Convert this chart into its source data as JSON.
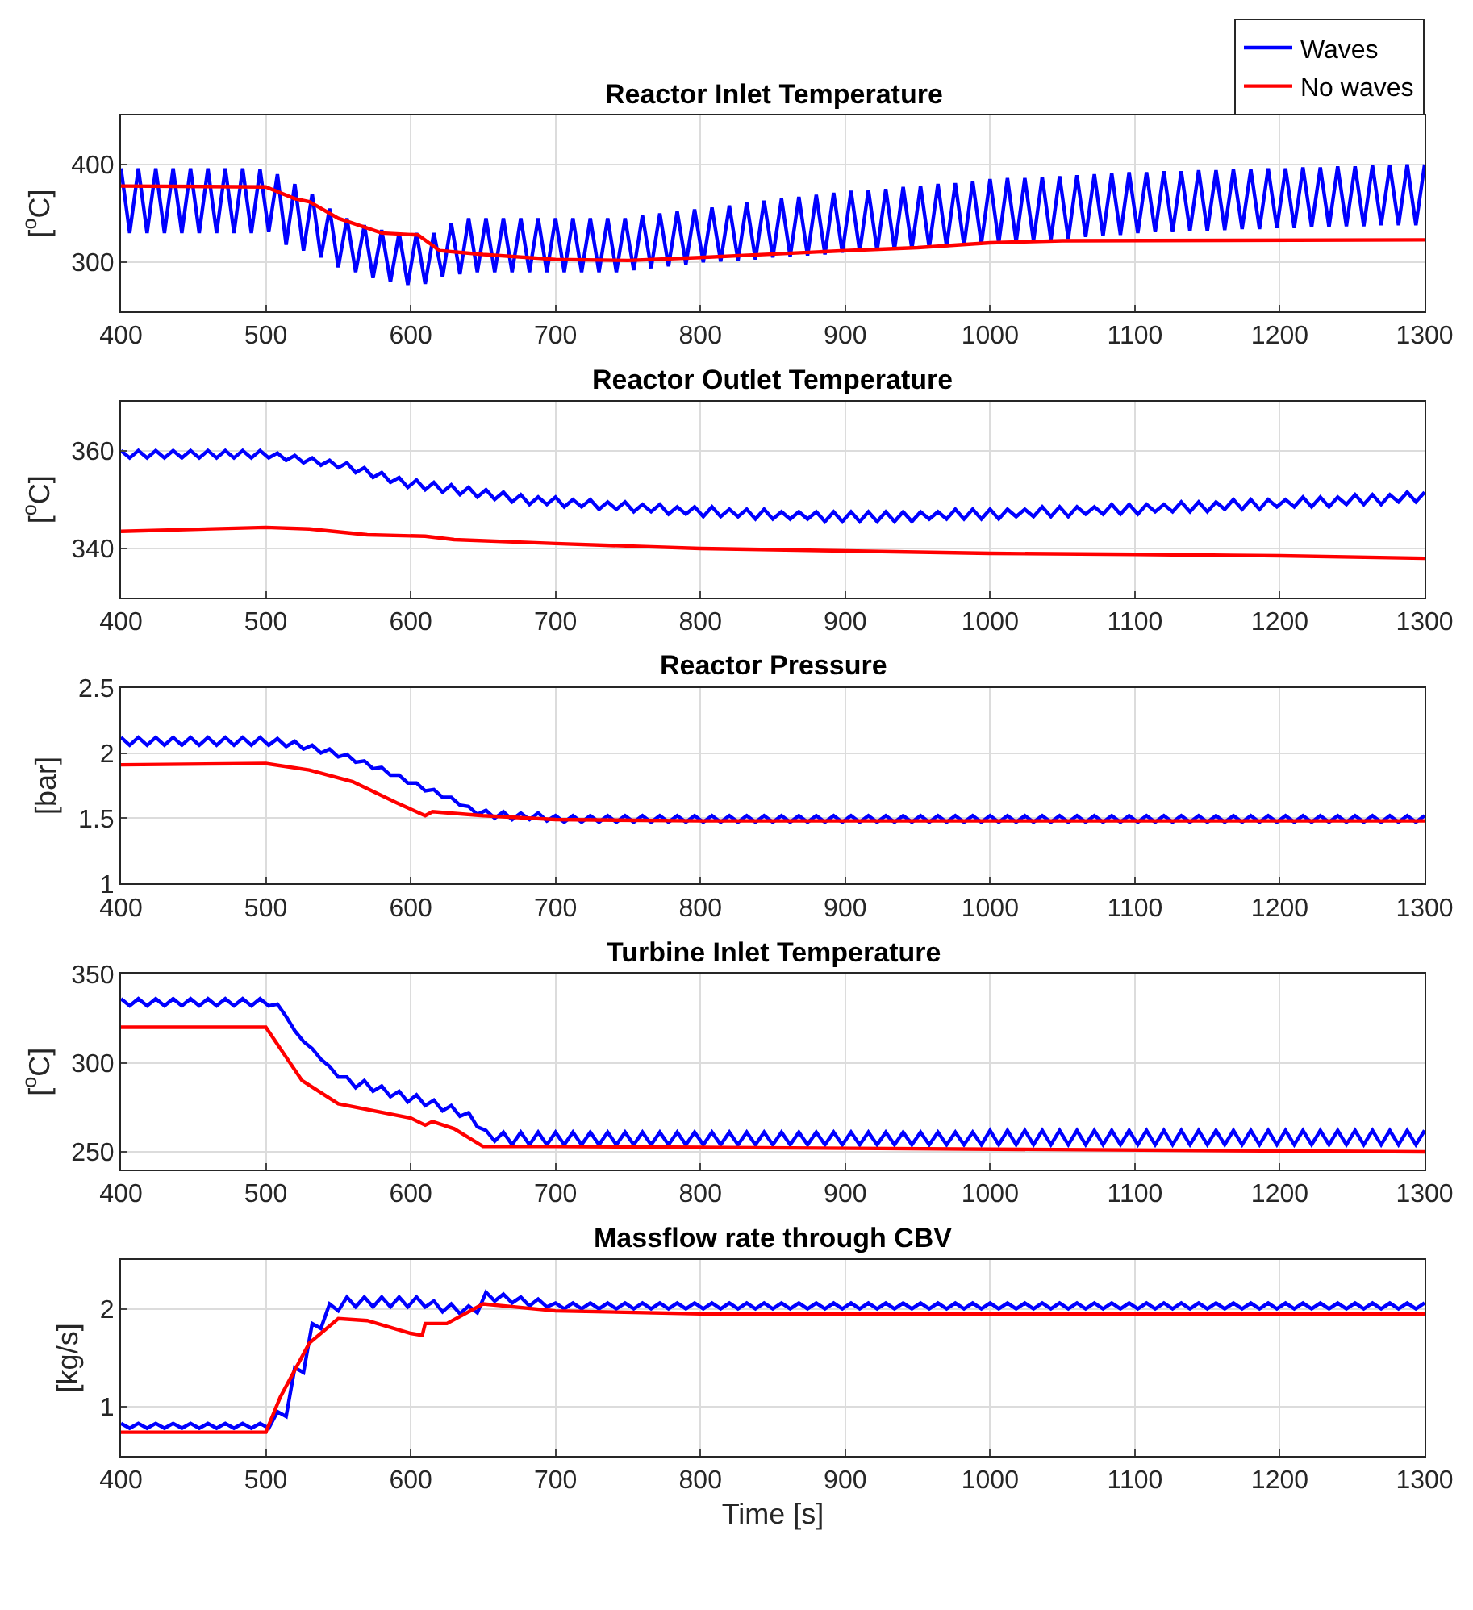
{
  "chart_data": [
    {
      "type": "line",
      "title": "Reactor Inlet Temperature",
      "ylabel": "[$^{o}$C]",
      "legend": "top right",
      "grid": true,
      "x": [
        400,
        406,
        412,
        418,
        424,
        430,
        436,
        442,
        448,
        454,
        460,
        466,
        472,
        478,
        484,
        490,
        496,
        502,
        508,
        514,
        520,
        526,
        532,
        538,
        544,
        550,
        556,
        562,
        568,
        574,
        580,
        586,
        592,
        598,
        604,
        610,
        616,
        622,
        628,
        634,
        640,
        646,
        652,
        658,
        664,
        670,
        676,
        682,
        688,
        694,
        700,
        706,
        712,
        718,
        724,
        730,
        736,
        742,
        748,
        754,
        760,
        766,
        772,
        778,
        784,
        790,
        796,
        802,
        808,
        814,
        820,
        826,
        832,
        838,
        844,
        850,
        856,
        862,
        868,
        874,
        880,
        886,
        892,
        898,
        904,
        910,
        916,
        922,
        928,
        934,
        940,
        946,
        952,
        958,
        964,
        970,
        976,
        982,
        988,
        994,
        1000,
        1006,
        1012,
        1018,
        1024,
        1030,
        1036,
        1042,
        1048,
        1054,
        1060,
        1066,
        1072,
        1078,
        1084,
        1090,
        1096,
        1102,
        1108,
        1114,
        1120,
        1126,
        1132,
        1138,
        1144,
        1150,
        1156,
        1162,
        1168,
        1174,
        1180,
        1186,
        1192,
        1198,
        1204,
        1210,
        1216,
        1222,
        1228,
        1234,
        1240,
        1246,
        1252,
        1258,
        1264,
        1270,
        1276,
        1282,
        1288,
        1294,
        1300
      ],
      "series": [
        {
          "name": "Waves",
          "color": "#0000ff",
          "values": [
            396,
            330,
            396,
            330,
            396,
            330,
            396,
            330,
            396,
            330,
            396,
            330,
            396,
            330,
            396,
            330,
            395,
            331,
            390,
            318,
            380,
            312,
            370,
            305,
            355,
            295,
            345,
            290,
            338,
            284,
            333,
            280,
            330,
            277,
            330,
            278,
            330,
            285,
            340,
            288,
            345,
            290,
            345,
            290,
            345,
            290,
            345,
            290,
            345,
            290,
            345,
            290,
            345,
            290,
            345,
            290,
            345,
            290,
            345,
            292,
            348,
            294,
            350,
            296,
            352,
            298,
            354,
            300,
            356,
            301,
            358,
            302,
            361,
            303,
            363,
            305,
            365,
            306,
            367,
            307,
            369,
            308,
            371,
            310,
            373,
            311,
            374,
            312,
            375,
            313,
            377,
            314,
            378,
            315,
            380,
            316,
            381,
            317,
            383,
            319,
            385,
            320,
            386,
            321,
            386,
            322,
            387,
            323,
            388,
            324,
            389,
            326,
            390,
            327,
            391,
            328,
            392,
            330,
            392,
            331,
            393,
            331,
            393,
            332,
            394,
            332,
            394,
            333,
            395,
            334,
            395,
            334,
            396,
            335,
            396,
            335,
            397,
            336,
            397,
            336,
            398,
            337,
            398,
            337,
            399,
            338,
            399,
            338,
            400,
            338,
            400
          ]
        },
        {
          "name": "No waves",
          "color": "#ff0000",
          "x": [
            400,
            500,
            520,
            530,
            550,
            580,
            605,
            620,
            650,
            700,
            750,
            800,
            900,
            950,
            1000,
            1050,
            1300
          ],
          "values": [
            378,
            377,
            365,
            362,
            345,
            330,
            328,
            312,
            308,
            303,
            302,
            305,
            312,
            315,
            320,
            322,
            323
          ]
        }
      ],
      "xlim": [
        400,
        1300
      ],
      "xticks": [
        400,
        500,
        600,
        700,
        800,
        900,
        1000,
        1100,
        1200,
        1300
      ],
      "ylim": [
        250,
        450
      ],
      "yticks": [
        300,
        400
      ]
    },
    {
      "type": "line",
      "title": "Reactor Outlet Temperature",
      "ylabel": "[$^{o}$C]",
      "grid": true,
      "x": [
        400,
        406,
        412,
        418,
        424,
        430,
        436,
        442,
        448,
        454,
        460,
        466,
        472,
        478,
        484,
        490,
        496,
        502,
        508,
        514,
        520,
        526,
        532,
        538,
        544,
        550,
        556,
        562,
        568,
        574,
        580,
        586,
        592,
        598,
        604,
        610,
        616,
        622,
        628,
        634,
        640,
        646,
        652,
        658,
        664,
        670,
        676,
        682,
        688,
        694,
        700,
        706,
        712,
        718,
        724,
        730,
        736,
        742,
        748,
        754,
        760,
        766,
        772,
        778,
        784,
        790,
        796,
        802,
        808,
        814,
        820,
        826,
        832,
        838,
        844,
        850,
        856,
        862,
        868,
        874,
        880,
        886,
        892,
        898,
        904,
        910,
        916,
        922,
        928,
        934,
        940,
        946,
        952,
        958,
        964,
        970,
        976,
        982,
        988,
        994,
        1000,
        1006,
        1012,
        1018,
        1024,
        1030,
        1036,
        1042,
        1048,
        1054,
        1060,
        1066,
        1072,
        1078,
        1084,
        1090,
        1096,
        1102,
        1108,
        1114,
        1120,
        1126,
        1132,
        1138,
        1144,
        1150,
        1156,
        1162,
        1168,
        1174,
        1180,
        1186,
        1192,
        1198,
        1204,
        1210,
        1216,
        1222,
        1228,
        1234,
        1240,
        1246,
        1252,
        1258,
        1264,
        1270,
        1276,
        1282,
        1288,
        1294,
        1300
      ],
      "series": [
        {
          "color": "#0000ff",
          "values": [
            360,
            358.5,
            360,
            358.5,
            360,
            358.5,
            360,
            358.5,
            360,
            358.5,
            360,
            358.5,
            360,
            358.5,
            360,
            358.5,
            360,
            358.5,
            359.5,
            358,
            359,
            357.5,
            358.5,
            357,
            358,
            356.5,
            357.5,
            355.5,
            356.5,
            354.5,
            355.5,
            353.5,
            354.5,
            352.5,
            354,
            352,
            353.5,
            351.5,
            353,
            351,
            352.5,
            350.5,
            352,
            350,
            351.5,
            349.5,
            351,
            349,
            350.5,
            349,
            350.5,
            348.5,
            350,
            348.5,
            350,
            348,
            349.5,
            348,
            349.5,
            347.5,
            349,
            347.5,
            349,
            347,
            348.5,
            347,
            348.5,
            346.5,
            348.5,
            346.5,
            348,
            346.5,
            348,
            346,
            348,
            346,
            347.5,
            346,
            347.5,
            346,
            347.5,
            345.5,
            347.5,
            345.5,
            347.5,
            345.5,
            347.5,
            345.5,
            347.5,
            345.5,
            347.5,
            345.5,
            347.5,
            346,
            347.5,
            346,
            348,
            346,
            348,
            346,
            348,
            346,
            348,
            346.5,
            348,
            346.5,
            348.5,
            346.5,
            348.5,
            346.5,
            348.5,
            347,
            348.5,
            347,
            349,
            347,
            349,
            347,
            349,
            347.5,
            349,
            347.5,
            349.5,
            347.5,
            349.5,
            347.5,
            349.5,
            348,
            350,
            348,
            350,
            348,
            350,
            348.5,
            350,
            348.5,
            350.5,
            348.5,
            350.5,
            348.5,
            350.5,
            349,
            351,
            349,
            351,
            349,
            351,
            349.5,
            351.5,
            349.5,
            351.5
          ]
        },
        {
          "color": "#ff0000",
          "x": [
            400,
            500,
            530,
            570,
            610,
            630,
            700,
            800,
            900,
            1000,
            1100,
            1200,
            1300
          ],
          "values": [
            343.5,
            344.3,
            344,
            342.8,
            342.5,
            341.8,
            341,
            340,
            339.5,
            339,
            338.8,
            338.5,
            338
          ]
        }
      ],
      "xlim": [
        400,
        1300
      ],
      "xticks": [
        400,
        500,
        600,
        700,
        800,
        900,
        1000,
        1100,
        1200,
        1300
      ],
      "ylim": [
        330,
        370
      ],
      "yticks": [
        340,
        360
      ]
    },
    {
      "type": "line",
      "title": "Reactor Pressure",
      "ylabel": "[bar]",
      "grid": true,
      "x": [
        400,
        406,
        412,
        418,
        424,
        430,
        436,
        442,
        448,
        454,
        460,
        466,
        472,
        478,
        484,
        490,
        496,
        502,
        508,
        514,
        520,
        526,
        532,
        538,
        544,
        550,
        556,
        562,
        568,
        574,
        580,
        586,
        592,
        598,
        604,
        610,
        616,
        622,
        628,
        634,
        640,
        646,
        652,
        658,
        664,
        670,
        676,
        682,
        688,
        694,
        700,
        706,
        712,
        718,
        724,
        730,
        736,
        742,
        748,
        754,
        760,
        766,
        772,
        778,
        784,
        790,
        796,
        802,
        808,
        814,
        820,
        826,
        832,
        838,
        844,
        850,
        856,
        862,
        868,
        874,
        880,
        886,
        892,
        898,
        904,
        910,
        916,
        922,
        928,
        934,
        940,
        946,
        952,
        958,
        964,
        970,
        976,
        982,
        988,
        994,
        1000,
        1006,
        1012,
        1018,
        1024,
        1030,
        1036,
        1042,
        1048,
        1054,
        1060,
        1066,
        1072,
        1078,
        1084,
        1090,
        1096,
        1102,
        1108,
        1114,
        1120,
        1126,
        1132,
        1138,
        1144,
        1150,
        1156,
        1162,
        1168,
        1174,
        1180,
        1186,
        1192,
        1198,
        1204,
        1210,
        1216,
        1222,
        1228,
        1234,
        1240,
        1246,
        1252,
        1258,
        1264,
        1270,
        1276,
        1282,
        1288,
        1294,
        1300
      ],
      "series": [
        {
          "color": "#0000ff",
          "values": [
            2.12,
            2.06,
            2.12,
            2.06,
            2.12,
            2.06,
            2.12,
            2.06,
            2.12,
            2.06,
            2.12,
            2.06,
            2.12,
            2.06,
            2.12,
            2.06,
            2.12,
            2.06,
            2.11,
            2.05,
            2.09,
            2.03,
            2.06,
            2.0,
            2.03,
            1.97,
            1.99,
            1.93,
            1.94,
            1.88,
            1.89,
            1.83,
            1.83,
            1.77,
            1.77,
            1.71,
            1.72,
            1.66,
            1.66,
            1.6,
            1.59,
            1.53,
            1.56,
            1.5,
            1.55,
            1.49,
            1.54,
            1.49,
            1.54,
            1.48,
            1.52,
            1.47,
            1.52,
            1.47,
            1.52,
            1.47,
            1.52,
            1.47,
            1.52,
            1.47,
            1.52,
            1.47,
            1.52,
            1.47,
            1.52,
            1.47,
            1.52,
            1.47,
            1.52,
            1.47,
            1.52,
            1.47,
            1.52,
            1.47,
            1.52,
            1.47,
            1.52,
            1.47,
            1.52,
            1.47,
            1.52,
            1.47,
            1.52,
            1.47,
            1.52,
            1.47,
            1.52,
            1.47,
            1.52,
            1.47,
            1.52,
            1.47,
            1.52,
            1.47,
            1.52,
            1.47,
            1.52,
            1.47,
            1.52,
            1.47,
            1.52,
            1.47,
            1.52,
            1.47,
            1.52,
            1.47,
            1.52,
            1.47,
            1.52,
            1.47,
            1.52,
            1.47,
            1.52,
            1.47,
            1.52,
            1.47,
            1.52,
            1.47,
            1.52,
            1.47,
            1.52,
            1.47,
            1.52,
            1.47,
            1.52,
            1.47,
            1.52,
            1.47,
            1.52,
            1.47,
            1.52,
            1.47,
            1.52,
            1.47,
            1.52,
            1.47,
            1.52,
            1.47,
            1.52,
            1.47,
            1.52,
            1.47,
            1.52,
            1.47,
            1.52,
            1.47,
            1.52,
            1.47,
            1.52,
            1.47,
            1.52
          ]
        },
        {
          "color": "#ff0000",
          "x": [
            400,
            500,
            530,
            560,
            590,
            610,
            615,
            650,
            700,
            800,
            1300
          ],
          "values": [
            1.91,
            1.92,
            1.87,
            1.78,
            1.62,
            1.52,
            1.55,
            1.52,
            1.49,
            1.48,
            1.48
          ]
        }
      ],
      "xlim": [
        400,
        1300
      ],
      "xticks": [
        400,
        500,
        600,
        700,
        800,
        900,
        1000,
        1100,
        1200,
        1300
      ],
      "ylim": [
        1,
        2.5
      ],
      "yticks": [
        1,
        1.5,
        2,
        2.5
      ]
    },
    {
      "type": "line",
      "title": "Turbine Inlet Temperature",
      "ylabel": "[$^{o}$C]",
      "grid": true,
      "x": [
        400,
        406,
        412,
        418,
        424,
        430,
        436,
        442,
        448,
        454,
        460,
        466,
        472,
        478,
        484,
        490,
        496,
        502,
        508,
        514,
        520,
        526,
        532,
        538,
        544,
        550,
        556,
        562,
        568,
        574,
        580,
        586,
        592,
        598,
        604,
        610,
        616,
        622,
        628,
        634,
        640,
        646,
        652,
        658,
        664,
        670,
        676,
        682,
        688,
        694,
        700,
        706,
        712,
        718,
        724,
        730,
        736,
        742,
        748,
        754,
        760,
        766,
        772,
        778,
        784,
        790,
        796,
        802,
        808,
        814,
        820,
        826,
        832,
        838,
        844,
        850,
        856,
        862,
        868,
        874,
        880,
        886,
        892,
        898,
        904,
        910,
        916,
        922,
        928,
        934,
        940,
        946,
        952,
        958,
        964,
        970,
        976,
        982,
        988,
        994,
        1000,
        1006,
        1012,
        1018,
        1024,
        1030,
        1036,
        1042,
        1048,
        1054,
        1060,
        1066,
        1072,
        1078,
        1084,
        1090,
        1096,
        1102,
        1108,
        1114,
        1120,
        1126,
        1132,
        1138,
        1144,
        1150,
        1156,
        1162,
        1168,
        1174,
        1180,
        1186,
        1192,
        1198,
        1204,
        1210,
        1216,
        1222,
        1228,
        1234,
        1240,
        1246,
        1252,
        1258,
        1264,
        1270,
        1276,
        1282,
        1288,
        1294,
        1300
      ],
      "series": [
        {
          "color": "#0000ff",
          "values": [
            336,
            332,
            336,
            332,
            336,
            332,
            336,
            332,
            336,
            332,
            336,
            332,
            336,
            332,
            336,
            332,
            336,
            332,
            333,
            326,
            318,
            312,
            308,
            302,
            298,
            292,
            292,
            286,
            290,
            284,
            287,
            281,
            284,
            278,
            282,
            276,
            279,
            273,
            276,
            270,
            272,
            264,
            262,
            256,
            261,
            254,
            261,
            254,
            261,
            254,
            261,
            254,
            261,
            254,
            261,
            254,
            261,
            254,
            261,
            254,
            261,
            254,
            261,
            254,
            261,
            254,
            261,
            254,
            261,
            254,
            261,
            254,
            261,
            254,
            261,
            254,
            261,
            254,
            261,
            254,
            261,
            254,
            261,
            254,
            261,
            254,
            261,
            254,
            261,
            254,
            261,
            254,
            261,
            254,
            261,
            254,
            261,
            254,
            261,
            254,
            262,
            254,
            262,
            254,
            262,
            254,
            262,
            254,
            262,
            254,
            262,
            254,
            262,
            254,
            262,
            254,
            262,
            254,
            262,
            254,
            262,
            254,
            262,
            254,
            262,
            254,
            262,
            254,
            262,
            254,
            262,
            254,
            262,
            254,
            262,
            254,
            262,
            254,
            262,
            254,
            262,
            254,
            262,
            254,
            262,
            254,
            262,
            254,
            262,
            254,
            262
          ]
        },
        {
          "color": "#ff0000",
          "x": [
            400,
            500,
            525,
            550,
            600,
            610,
            615,
            630,
            650,
            700,
            1300
          ],
          "values": [
            320,
            320,
            290,
            277,
            269,
            265,
            267,
            263,
            253,
            253,
            250
          ]
        }
      ],
      "xlim": [
        400,
        1300
      ],
      "xticks": [
        400,
        500,
        600,
        700,
        800,
        900,
        1000,
        1100,
        1200,
        1300
      ],
      "ylim": [
        240,
        350
      ],
      "yticks": [
        250,
        300,
        350
      ]
    },
    {
      "type": "line",
      "title": "Massflow rate through CBV",
      "ylabel": "[kg/s]",
      "xlabel": "Time [s]",
      "grid": true,
      "x": [
        400,
        406,
        412,
        418,
        424,
        430,
        436,
        442,
        448,
        454,
        460,
        466,
        472,
        478,
        484,
        490,
        496,
        502,
        508,
        514,
        520,
        526,
        532,
        538,
        544,
        550,
        556,
        562,
        568,
        574,
        580,
        586,
        592,
        598,
        604,
        610,
        616,
        622,
        628,
        634,
        640,
        646,
        652,
        658,
        664,
        670,
        676,
        682,
        688,
        694,
        700,
        706,
        712,
        718,
        724,
        730,
        736,
        742,
        748,
        754,
        760,
        766,
        772,
        778,
        784,
        790,
        796,
        802,
        808,
        814,
        820,
        826,
        832,
        838,
        844,
        850,
        856,
        862,
        868,
        874,
        880,
        886,
        892,
        898,
        904,
        910,
        916,
        922,
        928,
        934,
        940,
        946,
        952,
        958,
        964,
        970,
        976,
        982,
        988,
        994,
        1000,
        1006,
        1012,
        1018,
        1024,
        1030,
        1036,
        1042,
        1048,
        1054,
        1060,
        1066,
        1072,
        1078,
        1084,
        1090,
        1096,
        1102,
        1108,
        1114,
        1120,
        1126,
        1132,
        1138,
        1144,
        1150,
        1156,
        1162,
        1168,
        1174,
        1180,
        1186,
        1192,
        1198,
        1204,
        1210,
        1216,
        1222,
        1228,
        1234,
        1240,
        1246,
        1252,
        1258,
        1264,
        1270,
        1276,
        1282,
        1288,
        1294,
        1300
      ],
      "series": [
        {
          "color": "#0000ff",
          "values": [
            0.83,
            0.78,
            0.83,
            0.78,
            0.83,
            0.78,
            0.83,
            0.78,
            0.83,
            0.78,
            0.83,
            0.78,
            0.83,
            0.78,
            0.83,
            0.78,
            0.83,
            0.78,
            0.95,
            0.9,
            1.4,
            1.35,
            1.85,
            1.8,
            2.05,
            1.98,
            2.12,
            2.02,
            2.12,
            2.02,
            2.12,
            2.02,
            2.12,
            2.02,
            2.12,
            2.02,
            2.08,
            1.97,
            2.05,
            1.95,
            2.03,
            1.96,
            2.17,
            2.08,
            2.15,
            2.06,
            2.12,
            2.03,
            2.1,
            2.02,
            2.06,
            2.0,
            2.06,
            2.0,
            2.06,
            2.0,
            2.06,
            2.0,
            2.06,
            2.0,
            2.06,
            2.0,
            2.06,
            2.0,
            2.06,
            2.0,
            2.06,
            2.0,
            2.06,
            2.0,
            2.06,
            2.0,
            2.06,
            2.0,
            2.06,
            2.0,
            2.06,
            2.0,
            2.06,
            2.0,
            2.06,
            2.0,
            2.06,
            2.0,
            2.06,
            2.0,
            2.06,
            2.0,
            2.06,
            2.0,
            2.06,
            2.0,
            2.06,
            2.0,
            2.06,
            2.0,
            2.06,
            2.0,
            2.06,
            2.0,
            2.06,
            2.0,
            2.06,
            2.0,
            2.06,
            2.0,
            2.06,
            2.0,
            2.06,
            2.0,
            2.06,
            2.0,
            2.06,
            2.0,
            2.06,
            2.0,
            2.06,
            2.0,
            2.06,
            2.0,
            2.06,
            2.0,
            2.06,
            2.0,
            2.06,
            2.0,
            2.06,
            2.0,
            2.06,
            2.0,
            2.06,
            2.0,
            2.06,
            2.0,
            2.06,
            2.0,
            2.06,
            2.0,
            2.06,
            2.0,
            2.06,
            2.0,
            2.06,
            2.0,
            2.06,
            2.0,
            2.06,
            2.0,
            2.06,
            2.0,
            2.06
          ]
        },
        {
          "color": "#ff0000",
          "x": [
            400,
            500,
            510,
            530,
            550,
            570,
            600,
            608,
            610,
            625,
            650,
            700,
            800,
            1300
          ],
          "values": [
            0.74,
            0.74,
            1.1,
            1.65,
            1.9,
            1.88,
            1.75,
            1.73,
            1.85,
            1.85,
            2.05,
            1.98,
            1.95,
            1.95
          ]
        }
      ],
      "xlim": [
        400,
        1300
      ],
      "xticks": [
        400,
        500,
        600,
        700,
        800,
        900,
        1000,
        1100,
        1200,
        1300
      ],
      "ylim": [
        0.5,
        2.5
      ],
      "yticks": [
        1,
        2
      ]
    }
  ]
}
